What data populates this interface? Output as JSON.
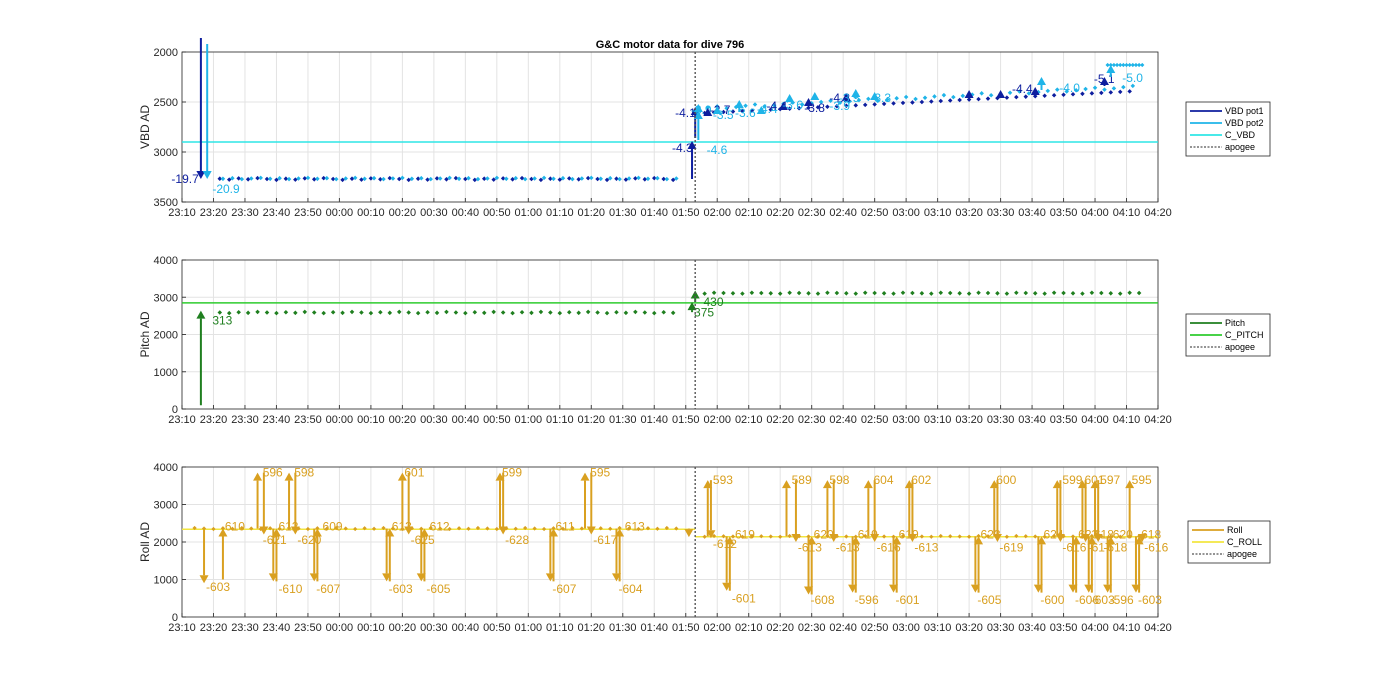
{
  "figure": {
    "title": "G&C motor data for dive 796"
  },
  "colors": {
    "vbd1": "#0e1e9e",
    "vbd2": "#1fb4e8",
    "cvbd": "#2ee6e6",
    "pitch": "#1f7f1f",
    "cpitch": "#2ecc2e",
    "roll": "#d9a020",
    "croll": "#f2e640",
    "apogee": "#555555",
    "grid": "#e3e3e3"
  },
  "chart_data": [
    {
      "type": "line",
      "id": "vbd",
      "ylabel": "VBD AD",
      "ylim": [
        2000,
        3500
      ],
      "y_reversed": true,
      "yticks": [
        2000,
        2500,
        3000,
        3500
      ],
      "xlim": [
        "23:10",
        "04:20"
      ],
      "xticks": [
        "23:10",
        "23:20",
        "23:30",
        "23:40",
        "23:50",
        "00:00",
        "00:10",
        "00:20",
        "00:30",
        "00:40",
        "00:50",
        "01:00",
        "01:10",
        "01:20",
        "01:30",
        "01:40",
        "01:50",
        "02:00",
        "02:10",
        "02:20",
        "02:30",
        "02:40",
        "02:50",
        "03:00",
        "03:10",
        "03:20",
        "03:30",
        "03:40",
        "03:50",
        "04:00",
        "04:10",
        "04:20"
      ],
      "apogee": "01:53",
      "legend": [
        "VBD pot1",
        "VBD pot2",
        "C_VBD",
        "apogee"
      ],
      "c_vbd": 2900,
      "arrows": [
        {
          "t": "23:16",
          "y0": 1860,
          "y1": 3270,
          "color": "vbd1",
          "label": "-19.7",
          "lt": "23:06",
          "ly": 3270
        },
        {
          "t": "23:18",
          "y0": 1920,
          "y1": 3270,
          "color": "vbd2",
          "label": "-20.9",
          "lt": "23:19",
          "ly": 3370
        },
        {
          "t": "01:52",
          "y0": 3270,
          "y1": 2890,
          "color": "vbd1",
          "label": "-4.3",
          "lt": "01:45",
          "ly": 2960
        },
        {
          "t": "01:53",
          "y0": 2860,
          "y1": 2550,
          "color": "vbd1",
          "label": "-4.1",
          "lt": "01:46",
          "ly": 2610
        },
        {
          "t": "01:54",
          "y0": 2880,
          "y1": 2590,
          "color": "vbd2",
          "label": "-4.6",
          "lt": "01:56",
          "ly": 2980
        },
        {
          "t": "01:54",
          "y0": 2620,
          "y1": 2520,
          "color": "vbd2",
          "label": "-3.9",
          "lt": "01:51",
          "ly": 2580
        },
        {
          "t": "01:57",
          "y0": 2620,
          "y1": 2560,
          "color": "vbd1",
          "label": "-2.7",
          "lt": "01:57",
          "ly": 2580
        },
        {
          "t": "02:00",
          "y0": 2620,
          "y1": 2540,
          "color": "vbd2",
          "label": "-3.5",
          "lt": "01:58",
          "ly": 2630
        },
        {
          "t": "02:07",
          "y0": 2600,
          "y1": 2480,
          "color": "vbd2",
          "label": "-3.6",
          "lt": "02:05",
          "ly": 2610
        },
        {
          "t": "02:14",
          "y0": 2600,
          "y1": 2540,
          "color": "vbd2",
          "label": "-4.4",
          "lt": "02:12",
          "ly": 2570
        },
        {
          "t": "02:21",
          "y0": 2570,
          "y1": 2500,
          "color": "vbd1",
          "label": "-4.4",
          "lt": "02:15",
          "ly": 2540
        },
        {
          "t": "02:23",
          "y0": 2500,
          "y1": 2420,
          "color": "vbd2",
          "label": "-3.6",
          "lt": "02:20",
          "ly": 2530
        },
        {
          "t": "02:29",
          "y0": 2520,
          "y1": 2460,
          "color": "vbd1",
          "label": "-3.8",
          "lt": "02:27",
          "ly": 2560
        },
        {
          "t": "02:31",
          "y0": 2470,
          "y1": 2400,
          "color": "vbd2",
          "label": "-3.9",
          "lt": "02:35",
          "ly": 2540
        },
        {
          "t": "02:41",
          "y0": 2470,
          "y1": 2410,
          "color": "vbd1",
          "label": "-4.2",
          "lt": "02:35",
          "ly": 2460
        },
        {
          "t": "02:44",
          "y0": 2470,
          "y1": 2370,
          "color": "vbd2",
          "label": "-3.5",
          "lt": "02:38",
          "ly": 2460
        },
        {
          "t": "02:50",
          "y0": 2440,
          "y1": 2400,
          "color": "vbd2",
          "label": "-3.3",
          "lt": "02:48",
          "ly": 2460
        },
        {
          "t": "03:20",
          "y0": 2460,
          "y1": 2380,
          "color": "vbd1",
          "label": "",
          "lt": "03:20",
          "ly": 2380
        },
        {
          "t": "03:30",
          "y0": 2460,
          "y1": 2380,
          "color": "vbd1",
          "label": "",
          "lt": "03:30",
          "ly": 2380
        },
        {
          "t": "03:41",
          "y0": 2420,
          "y1": 2350,
          "color": "vbd1",
          "label": "-4.4",
          "lt": "03:33",
          "ly": 2370
        },
        {
          "t": "03:43",
          "y0": 2380,
          "y1": 2250,
          "color": "vbd2",
          "label": "-4.0",
          "lt": "03:48",
          "ly": 2360
        },
        {
          "t": "04:03",
          "y0": 2340,
          "y1": 2250,
          "color": "vbd1",
          "label": "-5.1",
          "lt": "03:59",
          "ly": 2270
        },
        {
          "t": "04:05",
          "y0": 2250,
          "y1": 2130,
          "color": "vbd2",
          "label": "-5.0",
          "lt": "04:08",
          "ly": 2260
        }
      ]
    },
    {
      "type": "line",
      "id": "pitch",
      "ylabel": "Pitch AD",
      "ylim": [
        0,
        4000
      ],
      "y_reversed": false,
      "yticks": [
        0,
        1000,
        2000,
        3000,
        4000
      ],
      "xlim": [
        "23:10",
        "04:20"
      ],
      "xticks": [
        "23:10",
        "23:20",
        "23:30",
        "23:40",
        "23:50",
        "00:00",
        "00:10",
        "00:20",
        "00:30",
        "00:40",
        "00:50",
        "01:00",
        "01:10",
        "01:20",
        "01:30",
        "01:40",
        "01:50",
        "02:00",
        "02:10",
        "02:20",
        "02:30",
        "02:40",
        "02:50",
        "03:00",
        "03:10",
        "03:20",
        "03:30",
        "03:40",
        "03:50",
        "04:00",
        "04:10",
        "04:20"
      ],
      "apogee": "01:53",
      "legend": [
        "Pitch",
        "C_PITCH",
        "apogee"
      ],
      "c_pitch": 2850,
      "pre_level": 2590,
      "post_level": 3110,
      "arrows": [
        {
          "t": "23:16",
          "y0": 100,
          "y1": 2640,
          "label": "313",
          "lt": "23:19",
          "ly": 2380
        },
        {
          "t": "01:52",
          "y0": 2600,
          "y1": 2870,
          "label": "375",
          "lt": "01:52",
          "ly": 2590
        },
        {
          "t": "01:53",
          "y0": 2870,
          "y1": 3180,
          "label": "430",
          "lt": "01:55",
          "ly": 2870
        }
      ]
    },
    {
      "type": "line",
      "id": "roll",
      "ylabel": "Roll AD",
      "ylim": [
        0,
        4000
      ],
      "y_reversed": false,
      "yticks": [
        0,
        1000,
        2000,
        3000,
        4000
      ],
      "xlim": [
        "23:10",
        "04:20"
      ],
      "xticks": [
        "23:10",
        "23:20",
        "23:30",
        "23:40",
        "23:50",
        "00:00",
        "00:10",
        "00:20",
        "00:30",
        "00:40",
        "00:50",
        "01:00",
        "01:10",
        "01:20",
        "01:30",
        "01:40",
        "01:50",
        "02:00",
        "02:10",
        "02:20",
        "02:30",
        "02:40",
        "02:50",
        "03:00",
        "03:10",
        "03:20",
        "03:30",
        "03:40",
        "03:50",
        "04:00",
        "04:10",
        "04:20"
      ],
      "apogee": "01:53",
      "legend": [
        "Roll",
        "C_ROLL",
        "apogee"
      ],
      "c_roll": 2340,
      "c_roll_post": 2140,
      "pre_level": 2360,
      "post_level": 2150,
      "arrows": [
        {
          "t": "23:17",
          "y0": 2360,
          "y1": 900,
          "label": "-603",
          "lt": "23:17",
          "ly": 800
        },
        {
          "t": "23:23",
          "y0": 1000,
          "y1": 2360,
          "label": "610",
          "lt": "23:23",
          "ly": 2420
        },
        {
          "t": "23:34",
          "y0": 2360,
          "y1": 3850,
          "label": "596",
          "lt": "23:35",
          "ly": 3850
        },
        {
          "t": "23:36",
          "y0": 3850,
          "y1": 2200,
          "label": "-621",
          "lt": "23:35",
          "ly": 2050
        },
        {
          "t": "23:39",
          "y0": 2360,
          "y1": 950,
          "label": "-610",
          "lt": "23:40",
          "ly": 750
        },
        {
          "t": "23:40",
          "y0": 950,
          "y1": 2360,
          "label": "612",
          "lt": "23:40",
          "ly": 2420
        },
        {
          "t": "23:44",
          "y0": 2360,
          "y1": 3850,
          "label": "598",
          "lt": "23:45",
          "ly": 3850
        },
        {
          "t": "23:46",
          "y0": 3850,
          "y1": 2200,
          "label": "-620",
          "lt": "23:46",
          "ly": 2050
        },
        {
          "t": "23:52",
          "y0": 2360,
          "y1": 950,
          "label": "-607",
          "lt": "23:52",
          "ly": 750
        },
        {
          "t": "23:53",
          "y0": 950,
          "y1": 2360,
          "label": "609",
          "lt": "23:54",
          "ly": 2420
        },
        {
          "t": "00:15",
          "y0": 2360,
          "y1": 950,
          "label": "-603",
          "lt": "00:15",
          "ly": 750
        },
        {
          "t": "00:16",
          "y0": 950,
          "y1": 2360,
          "label": "613",
          "lt": "00:16",
          "ly": 2420
        },
        {
          "t": "00:20",
          "y0": 2360,
          "y1": 3850,
          "label": "601",
          "lt": "00:20",
          "ly": 3850
        },
        {
          "t": "00:22",
          "y0": 3850,
          "y1": 2200,
          "label": "-625",
          "lt": "00:22",
          "ly": 2050
        },
        {
          "t": "00:26",
          "y0": 2360,
          "y1": 950,
          "label": "-605",
          "lt": "00:27",
          "ly": 750
        },
        {
          "t": "00:27",
          "y0": 950,
          "y1": 2360,
          "label": "612",
          "lt": "00:28",
          "ly": 2420
        },
        {
          "t": "00:51",
          "y0": 2360,
          "y1": 3850,
          "label": "599",
          "lt": "00:51",
          "ly": 3850
        },
        {
          "t": "00:52",
          "y0": 3850,
          "y1": 2200,
          "label": "-628",
          "lt": "00:52",
          "ly": 2050
        },
        {
          "t": "01:07",
          "y0": 2360,
          "y1": 950,
          "label": "-607",
          "lt": "01:07",
          "ly": 750
        },
        {
          "t": "01:08",
          "y0": 950,
          "y1": 2360,
          "label": "611",
          "lt": "01:08",
          "ly": 2420
        },
        {
          "t": "01:18",
          "y0": 2360,
          "y1": 3850,
          "label": "595",
          "lt": "01:19",
          "ly": 3850
        },
        {
          "t": "01:20",
          "y0": 3850,
          "y1": 2200,
          "label": "-617",
          "lt": "01:20",
          "ly": 2050
        },
        {
          "t": "01:28",
          "y0": 2360,
          "y1": 950,
          "label": "-604",
          "lt": "01:28",
          "ly": 750
        },
        {
          "t": "01:29",
          "y0": 950,
          "y1": 2360,
          "label": "613",
          "lt": "01:30",
          "ly": 2420
        },
        {
          "t": "01:57",
          "y0": 2150,
          "y1": 3650,
          "label": "593",
          "lt": "01:58",
          "ly": 3650
        },
        {
          "t": "01:58",
          "y0": 3650,
          "y1": 2100,
          "label": "-612",
          "lt": "01:58",
          "ly": 1950
        },
        {
          "t": "02:03",
          "y0": 2150,
          "y1": 700,
          "label": "-601",
          "lt": "02:04",
          "ly": 500
        },
        {
          "t": "02:04",
          "y0": 700,
          "y1": 2150,
          "label": "619",
          "lt": "02:05",
          "ly": 2200
        },
        {
          "t": "02:22",
          "y0": 2150,
          "y1": 3650,
          "label": "589",
          "lt": "02:23",
          "ly": 3650
        },
        {
          "t": "02:25",
          "y0": 3650,
          "y1": 2000,
          "label": "-613",
          "lt": "02:25",
          "ly": 1850
        },
        {
          "t": "02:29",
          "y0": 2150,
          "y1": 600,
          "label": "-608",
          "lt": "02:29",
          "ly": 450
        },
        {
          "t": "02:30",
          "y0": 600,
          "y1": 2150,
          "label": "620",
          "lt": "02:30",
          "ly": 2200
        },
        {
          "t": "02:35",
          "y0": 2150,
          "y1": 3650,
          "label": "598",
          "lt": "02:35",
          "ly": 3650
        },
        {
          "t": "02:37",
          "y0": 3650,
          "y1": 2000,
          "label": "-613",
          "lt": "02:37",
          "ly": 1850
        },
        {
          "t": "02:43",
          "y0": 2150,
          "y1": 650,
          "label": "-596",
          "lt": "02:43",
          "ly": 450
        },
        {
          "t": "02:44",
          "y0": 650,
          "y1": 2150,
          "label": "619",
          "lt": "02:44",
          "ly": 2200
        },
        {
          "t": "02:48",
          "y0": 2150,
          "y1": 3650,
          "label": "604",
          "lt": "02:49",
          "ly": 3650
        },
        {
          "t": "02:50",
          "y0": 3650,
          "y1": 2000,
          "label": "-616",
          "lt": "02:50",
          "ly": 1850
        },
        {
          "t": "02:56",
          "y0": 2150,
          "y1": 650,
          "label": "-601",
          "lt": "02:56",
          "ly": 450
        },
        {
          "t": "02:57",
          "y0": 650,
          "y1": 2150,
          "label": "619",
          "lt": "02:57",
          "ly": 2200
        },
        {
          "t": "03:01",
          "y0": 2150,
          "y1": 3650,
          "label": "602",
          "lt": "03:01",
          "ly": 3650
        },
        {
          "t": "03:02",
          "y0": 3650,
          "y1": 2000,
          "label": "-613",
          "lt": "03:02",
          "ly": 1850
        },
        {
          "t": "03:22",
          "y0": 2150,
          "y1": 650,
          "label": "-605",
          "lt": "03:22",
          "ly": 450
        },
        {
          "t": "03:23",
          "y0": 650,
          "y1": 2150,
          "label": "623",
          "lt": "03:23",
          "ly": 2200
        },
        {
          "t": "03:28",
          "y0": 2150,
          "y1": 3650,
          "label": "600",
          "lt": "03:28",
          "ly": 3650
        },
        {
          "t": "03:29",
          "y0": 3650,
          "y1": 2000,
          "label": "-619",
          "lt": "03:29",
          "ly": 1850
        },
        {
          "t": "03:42",
          "y0": 2150,
          "y1": 650,
          "label": "-600",
          "lt": "03:42",
          "ly": 450
        },
        {
          "t": "03:43",
          "y0": 650,
          "y1": 2150,
          "label": "624",
          "lt": "03:43",
          "ly": 2200
        },
        {
          "t": "03:48",
          "y0": 2150,
          "y1": 3650,
          "label": "599",
          "lt": "03:49",
          "ly": 3650
        },
        {
          "t": "03:49",
          "y0": 3650,
          "y1": 2000,
          "label": "-616",
          "lt": "03:49",
          "ly": 1850
        },
        {
          "t": "03:53",
          "y0": 2150,
          "y1": 650,
          "label": "-606",
          "lt": "03:53",
          "ly": 450
        },
        {
          "t": "03:54",
          "y0": 650,
          "y1": 2150,
          "label": "623",
          "lt": "03:54",
          "ly": 2200
        },
        {
          "t": "03:56",
          "y0": 2150,
          "y1": 3650,
          "label": "601",
          "lt": "03:56",
          "ly": 3650
        },
        {
          "t": "03:57",
          "y0": 3650,
          "y1": 2000,
          "label": "-617",
          "lt": "03:57",
          "ly": 1850
        },
        {
          "t": "03:58",
          "y0": 2150,
          "y1": 650,
          "label": "-603",
          "lt": "03:58",
          "ly": 450
        },
        {
          "t": "03:59",
          "y0": 650,
          "y1": 2150,
          "label": "618",
          "lt": "03:59",
          "ly": 2200
        },
        {
          "t": "04:00",
          "y0": 2150,
          "y1": 3650,
          "label": "597",
          "lt": "04:01",
          "ly": 3650
        },
        {
          "t": "04:01",
          "y0": 3650,
          "y1": 2000,
          "label": "-618",
          "lt": "04:02",
          "ly": 1850
        },
        {
          "t": "04:04",
          "y0": 2150,
          "y1": 650,
          "label": "-596",
          "lt": "04:04",
          "ly": 450
        },
        {
          "t": "04:05",
          "y0": 650,
          "y1": 2150,
          "label": "620",
          "lt": "04:05",
          "ly": 2200
        },
        {
          "t": "04:11",
          "y0": 2150,
          "y1": 3650,
          "label": "595",
          "lt": "04:11",
          "ly": 3650
        },
        {
          "t": "04:13",
          "y0": 2150,
          "y1": 650,
          "label": "-603",
          "lt": "04:13",
          "ly": 450
        },
        {
          "t": "04:14",
          "y0": 650,
          "y1": 2150,
          "label": "618",
          "lt": "04:14",
          "ly": 2200
        },
        {
          "t": "04:15",
          "y0": 2150,
          "y1": 2000,
          "label": "-616",
          "lt": "04:15",
          "ly": 1850
        }
      ]
    }
  ]
}
